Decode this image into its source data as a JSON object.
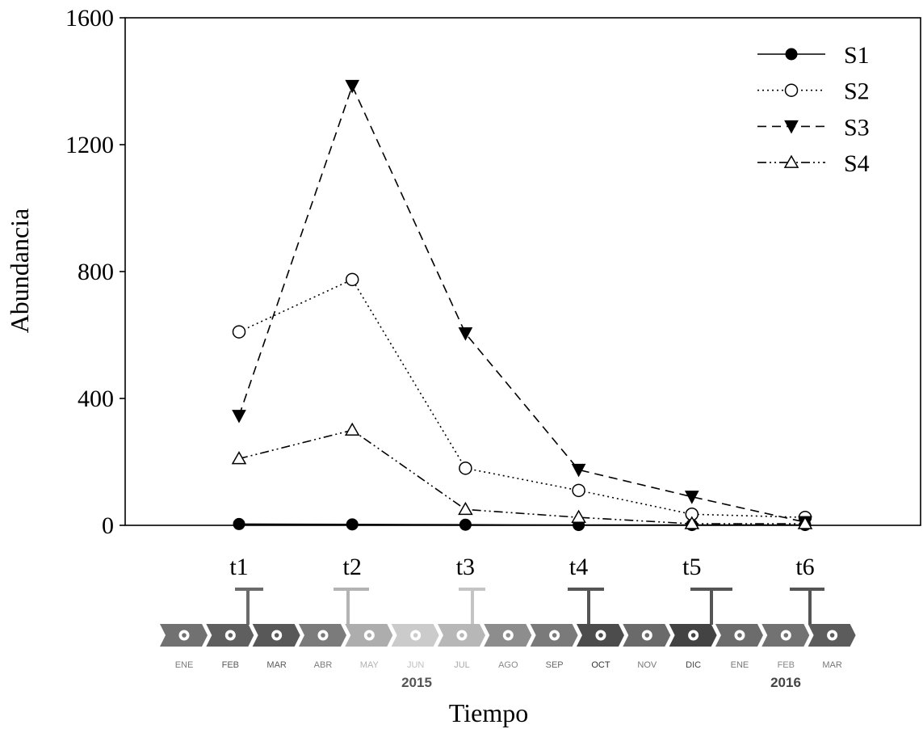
{
  "chart_data": {
    "type": "line",
    "title": "",
    "xlabel": "Tiempo",
    "ylabel": "Abundancia",
    "categories": [
      "t1",
      "t2",
      "t3",
      "t4",
      "t5",
      "t6"
    ],
    "ylim": [
      0,
      1600
    ],
    "yticks": [
      0,
      400,
      800,
      1200,
      1600
    ],
    "ytick_labels": [
      "0",
      "400",
      "800",
      "1200",
      "1600"
    ],
    "grid": false,
    "legend_position": "top-right",
    "series": [
      {
        "name": "S1",
        "marker": "filled-circle-icon",
        "values": [
          4,
          3,
          2,
          1,
          1,
          1
        ]
      },
      {
        "name": "S2",
        "marker": "open-circle-icon",
        "values": [
          610,
          775,
          180,
          110,
          35,
          25
        ]
      },
      {
        "name": "S3",
        "marker": "filled-triangle-down-icon",
        "values": [
          345,
          1385,
          605,
          175,
          90,
          10
        ]
      },
      {
        "name": "S4",
        "marker": "open-triangle-up-icon",
        "values": [
          210,
          300,
          50,
          25,
          5,
          5
        ]
      }
    ]
  },
  "timeline": {
    "months": [
      {
        "label": "ENE",
        "color": "#717171",
        "text_color": "#7a7a7a"
      },
      {
        "label": "FEB",
        "color": "#5f5f5f",
        "text_color": "#5a5a5a"
      },
      {
        "label": "MAR",
        "color": "#585858",
        "text_color": "#5a5a5a"
      },
      {
        "label": "ABR",
        "color": "#7b7b7b",
        "text_color": "#7a7a7a"
      },
      {
        "label": "MAY",
        "color": "#adadad",
        "text_color": "#b0b0b0"
      },
      {
        "label": "JUN",
        "color": "#cbcbcb",
        "text_color": "#c0c0c0"
      },
      {
        "label": "JUL",
        "color": "#b7b7b7",
        "text_color": "#aaaaaa"
      },
      {
        "label": "AGO",
        "color": "#8d8d8d",
        "text_color": "#888888"
      },
      {
        "label": "SEP",
        "color": "#7a7a7a",
        "text_color": "#666666"
      },
      {
        "label": "OCT",
        "color": "#4c4c4c",
        "text_color": "#333333"
      },
      {
        "label": "NOV",
        "color": "#6a6a6a",
        "text_color": "#777777"
      },
      {
        "label": "DIC",
        "color": "#434343",
        "text_color": "#444444"
      },
      {
        "label": "ENE",
        "color": "#6c6c6c",
        "text_color": "#777777"
      },
      {
        "label": "FEB",
        "color": "#727272",
        "text_color": "#888888"
      },
      {
        "label": "MAR",
        "color": "#5c5c5c",
        "text_color": "#777777"
      }
    ],
    "years": [
      {
        "label": "2015",
        "color": "#555555"
      },
      {
        "label": "2016",
        "color": "#444444"
      }
    ],
    "sampling_marker_colors": [
      "#6b6b6b",
      "#b3b3b3",
      "#c4c4c4",
      "#555555",
      "#555555",
      "#555555"
    ]
  }
}
